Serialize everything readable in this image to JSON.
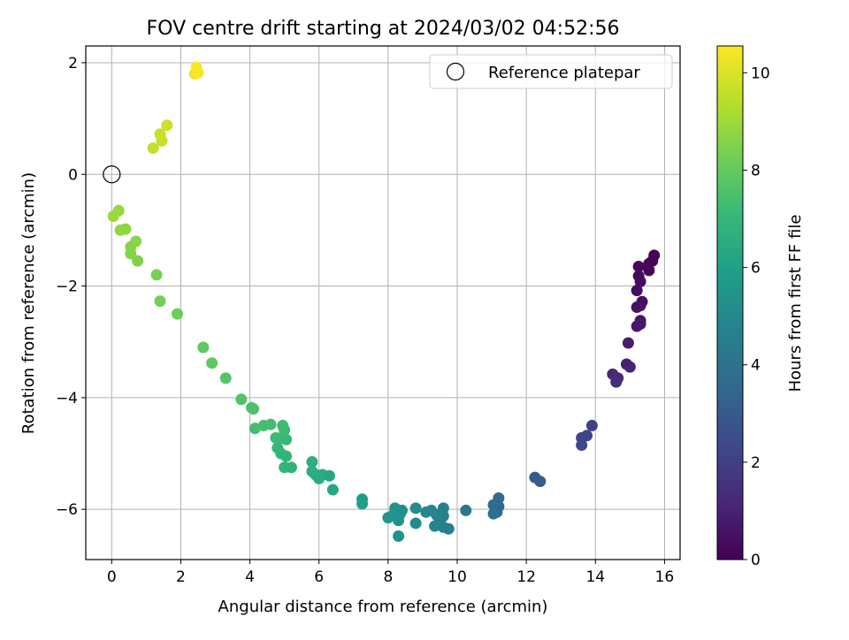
{
  "chart_data": {
    "type": "scatter",
    "title": "FOV centre drift starting at 2024/03/02 04:52:56",
    "xlabel": "Angular distance from reference (arcmin)",
    "ylabel": "Rotation from reference (arcmin)",
    "xlim": [
      -0.75,
      16.45
    ],
    "ylim": [
      -6.9,
      2.3
    ],
    "xticks": [
      0,
      2,
      4,
      6,
      8,
      10,
      12,
      14,
      16
    ],
    "yticks": [
      -6,
      -4,
      -2,
      0,
      2
    ],
    "grid": true,
    "legend": {
      "position": "top-right",
      "entries": [
        "Reference platepar"
      ]
    },
    "reference_point": {
      "x": 0,
      "y": 0
    },
    "colorbar": {
      "label": "Hours from first FF file",
      "range": [
        0,
        10.55
      ],
      "ticks": [
        0,
        2,
        4,
        6,
        8,
        10
      ],
      "colormap": [
        "#440154",
        "#482878",
        "#3e4989",
        "#31688e",
        "#26828e",
        "#1f9e89",
        "#35b779",
        "#6ece58",
        "#b5de2b",
        "#fde725"
      ]
    },
    "points": [
      {
        "x": 15.7,
        "y": -1.45,
        "t": 0.05
      },
      {
        "x": 15.65,
        "y": -1.55,
        "t": 0.1
      },
      {
        "x": 15.55,
        "y": -1.6,
        "t": 0.15
      },
      {
        "x": 15.55,
        "y": -1.72,
        "t": 0.2
      },
      {
        "x": 15.25,
        "y": -1.65,
        "t": 0.25
      },
      {
        "x": 15.25,
        "y": -1.82,
        "t": 0.3
      },
      {
        "x": 15.3,
        "y": -1.92,
        "t": 0.35
      },
      {
        "x": 15.2,
        "y": -2.08,
        "t": 0.4
      },
      {
        "x": 15.35,
        "y": -2.28,
        "t": 0.45
      },
      {
        "x": 15.3,
        "y": -2.35,
        "t": 0.5
      },
      {
        "x": 15.2,
        "y": -2.38,
        "t": 0.55
      },
      {
        "x": 15.3,
        "y": -2.62,
        "t": 0.6
      },
      {
        "x": 15.3,
        "y": -2.68,
        "t": 0.65
      },
      {
        "x": 15.2,
        "y": -2.72,
        "t": 0.7
      },
      {
        "x": 14.95,
        "y": -3.02,
        "t": 0.85
      },
      {
        "x": 14.9,
        "y": -3.4,
        "t": 1.0
      },
      {
        "x": 15.0,
        "y": -3.45,
        "t": 1.05
      },
      {
        "x": 14.5,
        "y": -3.58,
        "t": 1.2
      },
      {
        "x": 14.65,
        "y": -3.65,
        "t": 1.3
      },
      {
        "x": 14.6,
        "y": -3.72,
        "t": 1.35
      },
      {
        "x": 13.9,
        "y": -4.5,
        "t": 2.1
      },
      {
        "x": 13.75,
        "y": -4.68,
        "t": 2.2
      },
      {
        "x": 13.6,
        "y": -4.72,
        "t": 2.25
      },
      {
        "x": 13.6,
        "y": -4.85,
        "t": 2.3
      },
      {
        "x": 12.25,
        "y": -5.43,
        "t": 3.0
      },
      {
        "x": 12.4,
        "y": -5.5,
        "t": 3.05
      },
      {
        "x": 11.2,
        "y": -5.8,
        "t": 3.6
      },
      {
        "x": 11.2,
        "y": -5.95,
        "t": 3.65
      },
      {
        "x": 11.05,
        "y": -5.92,
        "t": 3.7
      },
      {
        "x": 11.15,
        "y": -6.05,
        "t": 3.75
      },
      {
        "x": 11.05,
        "y": -6.08,
        "t": 3.8
      },
      {
        "x": 10.25,
        "y": -6.02,
        "t": 4.2
      },
      {
        "x": 9.75,
        "y": -6.35,
        "t": 4.5
      },
      {
        "x": 9.6,
        "y": -6.32,
        "t": 4.55
      },
      {
        "x": 9.5,
        "y": -6.2,
        "t": 4.6
      },
      {
        "x": 9.6,
        "y": -6.12,
        "t": 4.65
      },
      {
        "x": 9.6,
        "y": -5.98,
        "t": 4.7
      },
      {
        "x": 9.4,
        "y": -6.1,
        "t": 4.75
      },
      {
        "x": 9.35,
        "y": -6.3,
        "t": 4.8
      },
      {
        "x": 9.25,
        "y": -6.02,
        "t": 4.85
      },
      {
        "x": 9.1,
        "y": -6.05,
        "t": 4.9
      },
      {
        "x": 8.8,
        "y": -6.25,
        "t": 5.05
      },
      {
        "x": 8.8,
        "y": -5.98,
        "t": 5.1
      },
      {
        "x": 8.4,
        "y": -6.02,
        "t": 5.2
      },
      {
        "x": 8.35,
        "y": -6.08,
        "t": 5.25
      },
      {
        "x": 8.3,
        "y": -6.2,
        "t": 5.3
      },
      {
        "x": 8.3,
        "y": -6.48,
        "t": 5.35
      },
      {
        "x": 8.2,
        "y": -5.98,
        "t": 5.4
      },
      {
        "x": 8.15,
        "y": -6.1,
        "t": 5.45
      },
      {
        "x": 8.0,
        "y": -6.15,
        "t": 5.5
      },
      {
        "x": 7.25,
        "y": -5.82,
        "t": 5.9
      },
      {
        "x": 7.25,
        "y": -5.9,
        "t": 5.95
      },
      {
        "x": 6.4,
        "y": -5.65,
        "t": 6.3
      },
      {
        "x": 6.3,
        "y": -5.4,
        "t": 6.35
      },
      {
        "x": 6.1,
        "y": -5.38,
        "t": 6.4
      },
      {
        "x": 6.0,
        "y": -5.45,
        "t": 6.45
      },
      {
        "x": 5.9,
        "y": -5.38,
        "t": 6.5
      },
      {
        "x": 5.8,
        "y": -5.15,
        "t": 6.55
      },
      {
        "x": 5.8,
        "y": -5.32,
        "t": 6.6
      },
      {
        "x": 5.2,
        "y": -5.25,
        "t": 6.8
      },
      {
        "x": 5.0,
        "y": -5.25,
        "t": 6.85
      },
      {
        "x": 5.05,
        "y": -5.05,
        "t": 6.9
      },
      {
        "x": 4.9,
        "y": -5.0,
        "t": 6.95
      },
      {
        "x": 4.8,
        "y": -4.9,
        "t": 7.0
      },
      {
        "x": 5.05,
        "y": -4.75,
        "t": 7.05
      },
      {
        "x": 4.9,
        "y": -4.72,
        "t": 7.1
      },
      {
        "x": 4.75,
        "y": -4.72,
        "t": 7.15
      },
      {
        "x": 5.0,
        "y": -4.58,
        "t": 7.2
      },
      {
        "x": 4.95,
        "y": -4.5,
        "t": 7.25
      },
      {
        "x": 4.6,
        "y": -4.48,
        "t": 7.3
      },
      {
        "x": 4.4,
        "y": -4.5,
        "t": 7.35
      },
      {
        "x": 4.15,
        "y": -4.55,
        "t": 7.4
      },
      {
        "x": 4.1,
        "y": -4.2,
        "t": 7.5
      },
      {
        "x": 4.05,
        "y": -4.18,
        "t": 7.55
      },
      {
        "x": 3.75,
        "y": -4.03,
        "t": 7.6
      },
      {
        "x": 3.3,
        "y": -3.65,
        "t": 7.75
      },
      {
        "x": 2.9,
        "y": -3.38,
        "t": 7.85
      },
      {
        "x": 2.65,
        "y": -3.1,
        "t": 7.9
      },
      {
        "x": 1.9,
        "y": -2.5,
        "t": 8.15
      },
      {
        "x": 1.4,
        "y": -2.27,
        "t": 8.25
      },
      {
        "x": 1.3,
        "y": -1.8,
        "t": 8.35
      },
      {
        "x": 0.75,
        "y": -1.55,
        "t": 8.5
      },
      {
        "x": 0.55,
        "y": -1.42,
        "t": 8.55
      },
      {
        "x": 0.55,
        "y": -1.3,
        "t": 8.6
      },
      {
        "x": 0.7,
        "y": -1.2,
        "t": 8.65
      },
      {
        "x": 0.4,
        "y": -0.98,
        "t": 8.75
      },
      {
        "x": 0.25,
        "y": -1.0,
        "t": 8.8
      },
      {
        "x": 0.2,
        "y": -0.65,
        "t": 8.9
      },
      {
        "x": 0.05,
        "y": -0.75,
        "t": 8.95
      },
      {
        "x": 1.2,
        "y": 0.47,
        "t": 9.6
      },
      {
        "x": 1.45,
        "y": 0.6,
        "t": 9.65
      },
      {
        "x": 1.4,
        "y": 0.72,
        "t": 9.7
      },
      {
        "x": 1.6,
        "y": 0.88,
        "t": 9.75
      },
      {
        "x": 2.4,
        "y": 1.8,
        "t": 10.4
      },
      {
        "x": 2.5,
        "y": 1.82,
        "t": 10.45
      },
      {
        "x": 2.45,
        "y": 1.92,
        "t": 10.5
      }
    ]
  }
}
